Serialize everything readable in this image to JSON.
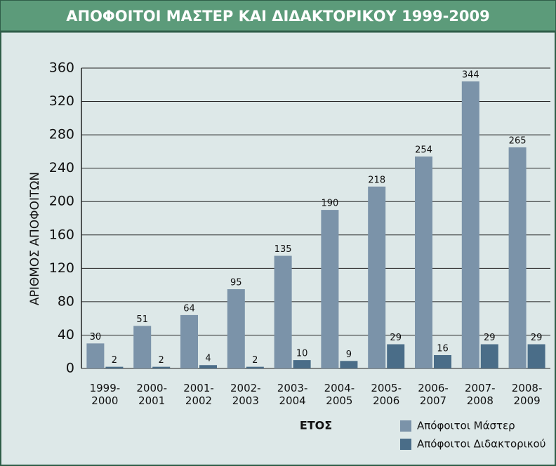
{
  "chart_data": {
    "type": "bar",
    "title": "ΑΠΟΦΟΙΤΟΙ ΜΑΣΤΕΡ ΚΑΙ ΔΙΔΑΚΤΟΡΙΚΟΥ 1999-2009",
    "x_label": "ΕΤΟΣ",
    "y_label": "ΑΡΙΘΜΟΣ ΑΠΟΦΟΙΤΩΝ",
    "categories": [
      "1999-2000",
      "2000-2001",
      "2001-2002",
      "2002-2003",
      "2003-2004",
      "2004-2005",
      "2005-2006",
      "2006-2007",
      "2007-2008",
      "2008-2009"
    ],
    "series": [
      {
        "name": "Απόφοιτοι Μάστερ",
        "color": "#7b93a9",
        "values": [
          30,
          51,
          64,
          95,
          135,
          190,
          218,
          254,
          344,
          265
        ]
      },
      {
        "name": "Απόφοιτοι Διδακτορικού",
        "color": "#4a6d88",
        "values": [
          2,
          2,
          4,
          2,
          10,
          9,
          29,
          16,
          29,
          29
        ]
      }
    ],
    "ylim": [
      0,
      360
    ],
    "yticks": [
      0,
      40,
      80,
      120,
      160,
      200,
      240,
      280,
      320,
      360
    ],
    "grid": true
  }
}
